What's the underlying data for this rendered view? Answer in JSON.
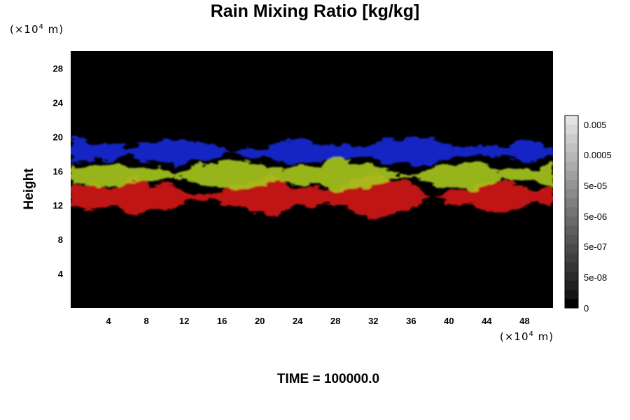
{
  "chart_data": {
    "type": "heatmap",
    "title": "Rain Mixing Ratio [kg/kg]",
    "ylabel": "Height",
    "y_unit": {
      "prefix": "(×10",
      "exp": "4",
      "suffix": " m)"
    },
    "x_unit": {
      "prefix": "(×10",
      "exp": "4",
      "suffix": " m)"
    },
    "time_label": "TIME = 100000.0",
    "xlim": [
      0,
      51
    ],
    "ylim": [
      0,
      30
    ],
    "x_ticks": [
      4,
      8,
      12,
      16,
      20,
      24,
      28,
      32,
      36,
      40,
      44,
      48
    ],
    "y_ticks": [
      4,
      8,
      12,
      16,
      20,
      24,
      28
    ],
    "background_color": "#000000",
    "layers": [
      {
        "color": "#1a2ad8",
        "y_range": [
          16.5,
          20
        ]
      },
      {
        "color": "#a8c81e",
        "y_range": [
          13.5,
          17.5
        ]
      },
      {
        "color": "#d41414",
        "y_range": [
          10.5,
          15.5
        ]
      }
    ],
    "colorbar": {
      "labels": [
        "0.005",
        "0.0005",
        "5e-05",
        "5e-06",
        "5e-07",
        "5e-08",
        "0"
      ],
      "colors": [
        "#000000",
        "#161616",
        "#212121",
        "#2b2b2b",
        "#353535",
        "#404040",
        "#4a4a4a",
        "#555555",
        "#5f5f5f",
        "#6a6a6a",
        "#747474",
        "#7f7f7f",
        "#8a8a8a",
        "#959595",
        "#a0a0a0",
        "#ababab",
        "#b6b6b6",
        "#c1c1c1",
        "#cccccc",
        "#d7d7d7",
        "#e3e3e3"
      ]
    }
  }
}
